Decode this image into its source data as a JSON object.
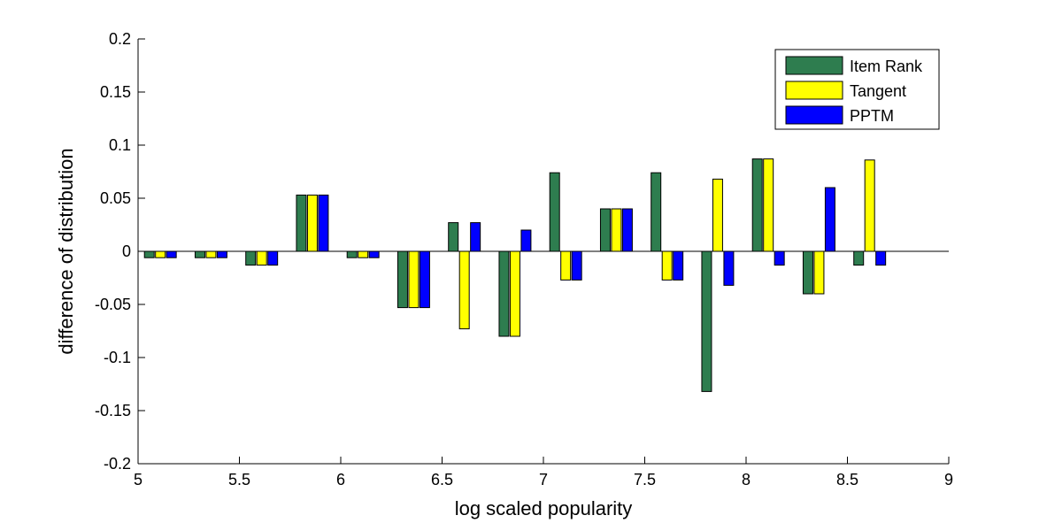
{
  "chart_data": {
    "type": "bar",
    "title": "",
    "xlabel": "log scaled popularity",
    "ylabel": "difference of distribution",
    "xlim": [
      5,
      9
    ],
    "ylim": [
      -0.2,
      0.2
    ],
    "xticks": [
      "5",
      "5.5",
      "6",
      "6.5",
      "7",
      "7.5",
      "8",
      "8.5",
      "9"
    ],
    "yticks": [
      "-0.2",
      "-0.15",
      "-0.1",
      "-0.05",
      "0",
      "0.05",
      "0.1",
      "0.15",
      "0.2"
    ],
    "grid": false,
    "legend_position": "top-right",
    "x": [
      5.11,
      5.36,
      5.61,
      5.86,
      6.11,
      6.36,
      6.61,
      6.86,
      7.11,
      7.36,
      7.61,
      7.86,
      8.11,
      8.36,
      8.61
    ],
    "series": [
      {
        "name": "Item Rank",
        "color": "#2e7d4f",
        "values": [
          -0.006,
          -0.006,
          -0.013,
          0.053,
          -0.006,
          -0.053,
          0.027,
          -0.08,
          0.074,
          0.04,
          0.074,
          -0.132,
          0.087,
          -0.04,
          -0.013
        ]
      },
      {
        "name": "Tangent",
        "color": "#ffff00",
        "values": [
          -0.006,
          -0.006,
          -0.013,
          0.053,
          -0.006,
          -0.053,
          -0.073,
          -0.08,
          -0.027,
          0.04,
          -0.027,
          0.068,
          0.087,
          -0.04,
          0.086
        ]
      },
      {
        "name": "PPTM",
        "color": "#0000ff",
        "values": [
          -0.006,
          -0.006,
          -0.013,
          0.053,
          -0.006,
          -0.053,
          0.027,
          0.02,
          -0.027,
          0.04,
          -0.027,
          -0.032,
          -0.013,
          0.06,
          -0.013
        ]
      }
    ]
  }
}
